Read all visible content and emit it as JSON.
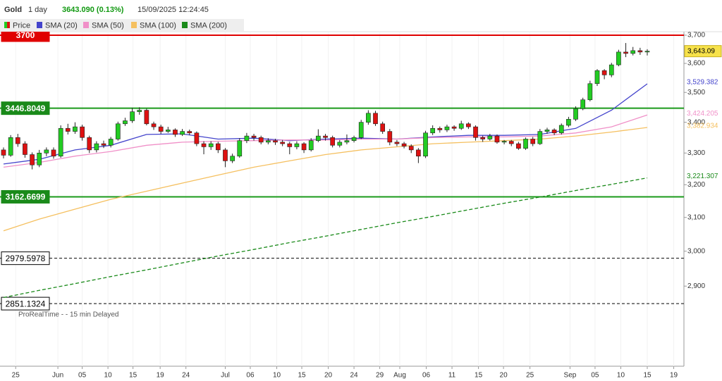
{
  "header": {
    "symbol": "Gold",
    "period": "1 day",
    "quote": "3643.090 (0.13%)",
    "time": "15/09/2025 12:24:45"
  },
  "footer": "ProRealTime -    - 15 min Delayed",
  "chart_data": {
    "type": "candlestick",
    "name": "Price",
    "last_label": "3,643.09",
    "up_color": "#22cc22",
    "down_color": "#dd1111",
    "log_scale": true,
    "ylim": [
      2683,
      3756
    ],
    "yticks": [
      {
        "value": 2900,
        "label": "2,900"
      },
      {
        "value": 3000,
        "label": "3,000"
      },
      {
        "value": 3100,
        "label": "3,100"
      },
      {
        "value": 3200,
        "label": "3,200"
      },
      {
        "value": 3300,
        "label": "3,300"
      },
      {
        "value": 3400,
        "label": "3,400"
      },
      {
        "value": 3500,
        "label": "3,500"
      },
      {
        "value": 3600,
        "label": "3,600"
      },
      {
        "value": 3700,
        "label": "3,700"
      }
    ],
    "xlim": [
      0,
      90
    ],
    "xticks": [
      {
        "value": 1.7,
        "label": "25"
      },
      {
        "value": 7.6,
        "label": "Jun"
      },
      {
        "value": 11.0,
        "label": "05"
      },
      {
        "value": 14.6,
        "label": "10"
      },
      {
        "value": 18.1,
        "label": "15"
      },
      {
        "value": 21.9,
        "label": "19"
      },
      {
        "value": 25.5,
        "label": "24"
      },
      {
        "value": 31.0,
        "label": "Jul"
      },
      {
        "value": 34.5,
        "label": "06"
      },
      {
        "value": 38.2,
        "label": "10"
      },
      {
        "value": 41.7,
        "label": "15"
      },
      {
        "value": 45.4,
        "label": "20"
      },
      {
        "value": 49.0,
        "label": "24"
      },
      {
        "value": 52.6,
        "label": "29"
      },
      {
        "value": 55.4,
        "label": "Aug"
      },
      {
        "value": 59.1,
        "label": "06"
      },
      {
        "value": 62.7,
        "label": "11"
      },
      {
        "value": 66.4,
        "label": "15"
      },
      {
        "value": 69.9,
        "label": "20"
      },
      {
        "value": 73.6,
        "label": "25"
      },
      {
        "value": 79.2,
        "label": "Sep"
      },
      {
        "value": 82.7,
        "label": "05"
      },
      {
        "value": 86.3,
        "label": "10"
      },
      {
        "value": 90.0,
        "label": "15"
      },
      {
        "value": 93.7,
        "label": "19"
      }
    ],
    "ohlc": [
      [
        3310,
        3318,
        3283,
        3293
      ],
      [
        3293,
        3358,
        3288,
        3350
      ],
      [
        3350,
        3362,
        3320,
        3330
      ],
      [
        3330,
        3338,
        3285,
        3295
      ],
      [
        3295,
        3302,
        3248,
        3262
      ],
      [
        3262,
        3310,
        3255,
        3300
      ],
      [
        3300,
        3318,
        3290,
        3310
      ],
      [
        3310,
        3318,
        3282,
        3290
      ],
      [
        3290,
        3390,
        3285,
        3380
      ],
      [
        3380,
        3395,
        3360,
        3370
      ],
      [
        3370,
        3400,
        3362,
        3385
      ],
      [
        3385,
        3392,
        3340,
        3350
      ],
      [
        3350,
        3356,
        3300,
        3310
      ],
      [
        3310,
        3338,
        3302,
        3330
      ],
      [
        3330,
        3340,
        3316,
        3325
      ],
      [
        3325,
        3352,
        3318,
        3345
      ],
      [
        3345,
        3402,
        3340,
        3395
      ],
      [
        3395,
        3415,
        3388,
        3405
      ],
      [
        3405,
        3448,
        3398,
        3435
      ],
      [
        3435,
        3450,
        3425,
        3440
      ],
      [
        3440,
        3445,
        3390,
        3395
      ],
      [
        3395,
        3402,
        3375,
        3385
      ],
      [
        3385,
        3392,
        3362,
        3370
      ],
      [
        3370,
        3385,
        3365,
        3375
      ],
      [
        3375,
        3380,
        3352,
        3360
      ],
      [
        3360,
        3378,
        3355,
        3370
      ],
      [
        3370,
        3376,
        3358,
        3365
      ],
      [
        3365,
        3370,
        3322,
        3330
      ],
      [
        3330,
        3338,
        3296,
        3320
      ],
      [
        3320,
        3338,
        3310,
        3330
      ],
      [
        3330,
        3336,
        3300,
        3310
      ],
      [
        3310,
        3316,
        3255,
        3275
      ],
      [
        3275,
        3298,
        3268,
        3290
      ],
      [
        3290,
        3348,
        3285,
        3340
      ],
      [
        3340,
        3365,
        3332,
        3355
      ],
      [
        3355,
        3362,
        3340,
        3350
      ],
      [
        3350,
        3356,
        3328,
        3335
      ],
      [
        3335,
        3348,
        3328,
        3340
      ],
      [
        3340,
        3346,
        3326,
        3335
      ],
      [
        3335,
        3342,
        3322,
        3330
      ],
      [
        3330,
        3336,
        3296,
        3320
      ],
      [
        3320,
        3338,
        3312,
        3330
      ],
      [
        3330,
        3335,
        3300,
        3310
      ],
      [
        3310,
        3348,
        3305,
        3340
      ],
      [
        3340,
        3377,
        3335,
        3355
      ],
      [
        3355,
        3362,
        3340,
        3350
      ],
      [
        3350,
        3356,
        3318,
        3325
      ],
      [
        3325,
        3342,
        3318,
        3335
      ],
      [
        3335,
        3360,
        3328,
        3340
      ],
      [
        3340,
        3356,
        3334,
        3350
      ],
      [
        3350,
        3408,
        3345,
        3400
      ],
      [
        3400,
        3440,
        3392,
        3430
      ],
      [
        3430,
        3438,
        3388,
        3395
      ],
      [
        3395,
        3402,
        3362,
        3370
      ],
      [
        3370,
        3378,
        3325,
        3335
      ],
      [
        3335,
        3342,
        3322,
        3330
      ],
      [
        3330,
        3336,
        3315,
        3322
      ],
      [
        3322,
        3328,
        3300,
        3310
      ],
      [
        3310,
        3316,
        3268,
        3290
      ],
      [
        3290,
        3372,
        3284,
        3365
      ],
      [
        3365,
        3390,
        3358,
        3380
      ],
      [
        3380,
        3386,
        3366,
        3375
      ],
      [
        3375,
        3392,
        3368,
        3385
      ],
      [
        3385,
        3390,
        3372,
        3380
      ],
      [
        3380,
        3405,
        3375,
        3395
      ],
      [
        3395,
        3400,
        3378,
        3385
      ],
      [
        3385,
        3390,
        3340,
        3350
      ],
      [
        3350,
        3356,
        3336,
        3345
      ],
      [
        3345,
        3362,
        3340,
        3355
      ],
      [
        3355,
        3360,
        3330,
        3335
      ],
      [
        3335,
        3342,
        3328,
        3338
      ],
      [
        3338,
        3342,
        3322,
        3330
      ],
      [
        3330,
        3336,
        3310,
        3315
      ],
      [
        3315,
        3350,
        3310,
        3345
      ],
      [
        3345,
        3352,
        3322,
        3330
      ],
      [
        3330,
        3378,
        3326,
        3370
      ],
      [
        3370,
        3382,
        3362,
        3375
      ],
      [
        3375,
        3380,
        3358,
        3365
      ],
      [
        3365,
        3396,
        3360,
        3390
      ],
      [
        3390,
        3418,
        3384,
        3410
      ],
      [
        3410,
        3453,
        3404,
        3445
      ],
      [
        3445,
        3482,
        3440,
        3475
      ],
      [
        3475,
        3540,
        3470,
        3530
      ],
      [
        3530,
        3580,
        3522,
        3575
      ],
      [
        3575,
        3580,
        3545,
        3560
      ],
      [
        3560,
        3602,
        3552,
        3595
      ],
      [
        3595,
        3648,
        3590,
        3640
      ],
      [
        3640,
        3672,
        3622,
        3635
      ],
      [
        3635,
        3658,
        3628,
        3645
      ],
      [
        3645,
        3655,
        3630,
        3640
      ],
      [
        3640,
        3650,
        3628,
        3643.09
      ]
    ],
    "series": [
      {
        "name": "SMA (20)",
        "color": "#4444cc",
        "dashed": false,
        "last_label": "3,529.382",
        "x": [
          0,
          5,
          10,
          15,
          20,
          25,
          30,
          35,
          40,
          45,
          50,
          55,
          60,
          65,
          70,
          75,
          80,
          85,
          90
        ],
        "values": [
          3265,
          3280,
          3310,
          3325,
          3360,
          3362,
          3345,
          3348,
          3340,
          3345,
          3348,
          3345,
          3352,
          3357,
          3357,
          3360,
          3380,
          3440,
          3529.382
        ]
      },
      {
        "name": "SMA (50)",
        "color": "#f090c8",
        "dashed": false,
        "last_label": "3,424.205",
        "x": [
          0,
          5,
          10,
          15,
          20,
          25,
          30,
          35,
          40,
          45,
          50,
          55,
          60,
          65,
          70,
          75,
          80,
          85,
          90
        ],
        "values": [
          3255,
          3270,
          3290,
          3305,
          3325,
          3335,
          3338,
          3340,
          3342,
          3342,
          3345,
          3345,
          3350,
          3352,
          3352,
          3355,
          3365,
          3385,
          3424.205
        ]
      },
      {
        "name": "SMA (100)",
        "color": "#f5c060",
        "dashed": false,
        "last_label": "3,382.934",
        "x": [
          0,
          5,
          10,
          15,
          20,
          25,
          30,
          35,
          40,
          45,
          50,
          55,
          60,
          65,
          70,
          75,
          80,
          85,
          90
        ],
        "values": [
          3060,
          3095,
          3125,
          3155,
          3180,
          3205,
          3230,
          3255,
          3275,
          3295,
          3310,
          3320,
          3330,
          3335,
          3340,
          3345,
          3355,
          3368,
          3382.934
        ]
      },
      {
        "name": "SMA (200)",
        "color": "#1a8a1a",
        "dashed": true,
        "last_label": "3,221.307",
        "x": [
          0,
          5,
          10,
          15,
          20,
          25,
          30,
          35,
          40,
          45,
          50,
          55,
          60,
          65,
          70,
          75,
          80,
          85,
          90
        ],
        "values": [
          2868,
          2888,
          2907,
          2927,
          2946,
          2966,
          2986,
          3005,
          3025,
          3044,
          3064,
          3084,
          3103,
          3123,
          3143,
          3162,
          3182,
          3201,
          3221.307
        ]
      }
    ],
    "levels": [
      {
        "value": 3700,
        "color": "#e00000",
        "dashed": false,
        "box": "#e00000",
        "text_color": "#ffffff"
      },
      {
        "value": 3446.8049,
        "color": "#1a9a1a",
        "dashed": false,
        "box": "#1a8a1a",
        "text_color": "#ffffff"
      },
      {
        "value": 3162.6699,
        "color": "#1a9a1a",
        "dashed": false,
        "box": "#1a8a1a",
        "text_color": "#ffffff"
      },
      {
        "value": 2979.5978,
        "color": "#333333",
        "dashed": true,
        "box": "#ffffff",
        "text_color": "#000000"
      },
      {
        "value": 2851.1324,
        "color": "#333333",
        "dashed": true,
        "box": "#ffffff",
        "text_color": "#000000"
      }
    ]
  }
}
